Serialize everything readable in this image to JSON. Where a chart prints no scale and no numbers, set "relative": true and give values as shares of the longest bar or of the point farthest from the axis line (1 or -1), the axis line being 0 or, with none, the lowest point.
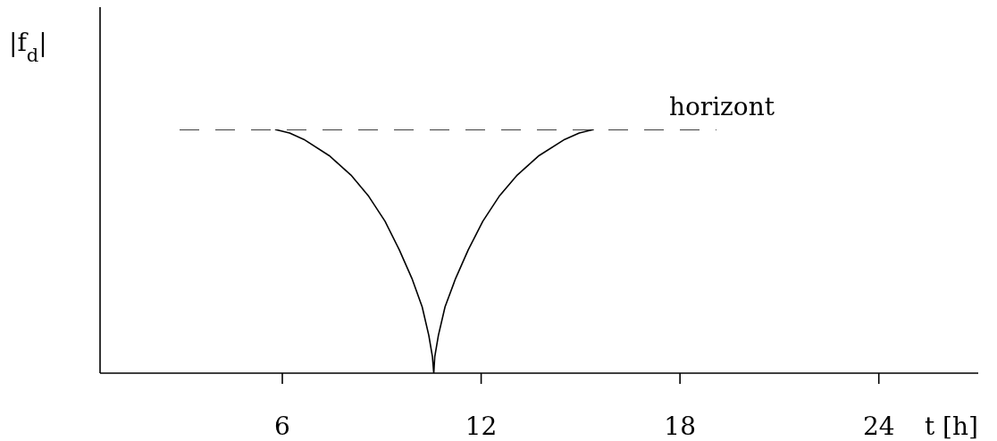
{
  "chart_data": {
    "type": "line",
    "xlabel": "t [h]",
    "ylabel": "|f$_{d}$|",
    "relative": true,
    "xlim": [
      0.5,
      27
    ],
    "xticks": [
      6,
      12,
      18,
      24
    ],
    "marker": "none",
    "line_style": "solid",
    "series": [
      {
        "color": "#000000",
        "x": [
          5.78,
          6.22,
          6.65,
          7.41,
          8.07,
          8.61,
          9.1,
          9.53,
          9.91,
          10.22,
          10.42,
          10.53,
          10.57,
          10.6,
          10.71,
          10.91,
          11.23,
          11.61,
          12.05,
          12.54,
          13.09,
          13.75,
          14.52,
          14.96,
          15.4
        ],
        "values": [
          1,
          0.985,
          0.959,
          0.893,
          0.813,
          0.725,
          0.623,
          0.506,
          0.389,
          0.272,
          0.155,
          0.067,
          0,
          0.067,
          0.155,
          0.272,
          0.389,
          0.506,
          0.623,
          0.725,
          0.813,
          0.893,
          0.959,
          0.985,
          1
        ]
      },
      {
        "name": "horizont",
        "color": "#000000",
        "line_style": "dashed",
        "x": [
          2.9,
          19.1
        ],
        "values": [
          1,
          1
        ]
      }
    ]
  }
}
